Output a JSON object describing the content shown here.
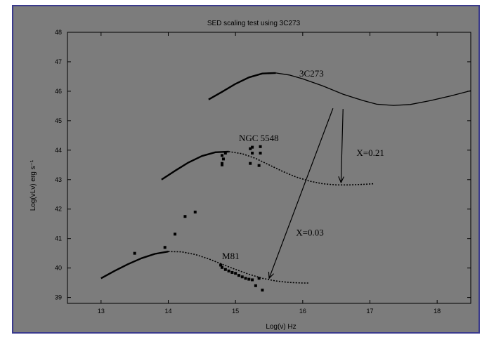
{
  "colors": {
    "page": "#ffffff",
    "border": "#3a3a8c",
    "panel": "#7c7c7c",
    "ink": "#000000"
  },
  "chart_data": {
    "type": "line",
    "title": "SED scaling test using 3C273",
    "xlabel": "Log(ν) Hz",
    "ylabel": "Log(νLν) erg s⁻¹",
    "xlim": [
      12.5,
      18.5
    ],
    "ylim": [
      38.8,
      48.0
    ],
    "x_ticks": [
      13,
      14,
      15,
      16,
      17,
      18
    ],
    "y_ticks": [
      39,
      40,
      41,
      42,
      43,
      44,
      45,
      46,
      47,
      48
    ],
    "grid": false,
    "series": [
      {
        "name": "3C273",
        "curve": [
          {
            "x": 14.6,
            "y": 45.72
          },
          {
            "x": 14.8,
            "y": 45.98
          },
          {
            "x": 15.0,
            "y": 46.25
          },
          {
            "x": 15.2,
            "y": 46.47
          },
          {
            "x": 15.4,
            "y": 46.6
          },
          {
            "x": 15.6,
            "y": 46.62
          },
          {
            "x": 15.8,
            "y": 46.55
          },
          {
            "x": 16.0,
            "y": 46.42
          },
          {
            "x": 16.3,
            "y": 46.18
          },
          {
            "x": 16.6,
            "y": 45.9
          },
          {
            "x": 16.9,
            "y": 45.68
          },
          {
            "x": 17.1,
            "y": 45.56
          },
          {
            "x": 17.35,
            "y": 45.52
          },
          {
            "x": 17.6,
            "y": 45.55
          },
          {
            "x": 17.9,
            "y": 45.68
          },
          {
            "x": 18.2,
            "y": 45.84
          },
          {
            "x": 18.5,
            "y": 46.02
          }
        ]
      },
      {
        "name": "NGC 5548",
        "curve": [
          {
            "x": 13.9,
            "y": 43.0
          },
          {
            "x": 14.1,
            "y": 43.3
          },
          {
            "x": 14.3,
            "y": 43.58
          },
          {
            "x": 14.5,
            "y": 43.8
          },
          {
            "x": 14.7,
            "y": 43.93
          },
          {
            "x": 14.9,
            "y": 43.95
          },
          {
            "x": 15.1,
            "y": 43.88
          },
          {
            "x": 15.3,
            "y": 43.72
          },
          {
            "x": 15.5,
            "y": 43.5
          },
          {
            "x": 15.7,
            "y": 43.28
          },
          {
            "x": 15.9,
            "y": 43.09
          },
          {
            "x": 16.1,
            "y": 42.95
          },
          {
            "x": 16.3,
            "y": 42.86
          },
          {
            "x": 16.5,
            "y": 42.82
          },
          {
            "x": 16.7,
            "y": 42.82
          },
          {
            "x": 16.9,
            "y": 42.84
          },
          {
            "x": 17.05,
            "y": 42.86
          }
        ],
        "points": [
          {
            "x": 14.8,
            "y": 43.5
          },
          {
            "x": 14.8,
            "y": 43.55
          },
          {
            "x": 14.82,
            "y": 43.7
          },
          {
            "x": 14.8,
            "y": 43.82
          },
          {
            "x": 14.85,
            "y": 43.9
          },
          {
            "x": 15.22,
            "y": 43.55
          },
          {
            "x": 15.25,
            "y": 43.9
          },
          {
            "x": 15.22,
            "y": 44.05
          },
          {
            "x": 15.25,
            "y": 44.1
          },
          {
            "x": 15.35,
            "y": 43.48
          },
          {
            "x": 15.37,
            "y": 43.9
          },
          {
            "x": 15.37,
            "y": 44.12
          }
        ]
      },
      {
        "name": "M81",
        "curve": [
          {
            "x": 13.0,
            "y": 39.65
          },
          {
            "x": 13.2,
            "y": 39.9
          },
          {
            "x": 13.4,
            "y": 40.13
          },
          {
            "x": 13.6,
            "y": 40.33
          },
          {
            "x": 13.8,
            "y": 40.48
          },
          {
            "x": 14.0,
            "y": 40.56
          },
          {
            "x": 14.2,
            "y": 40.55
          },
          {
            "x": 14.4,
            "y": 40.46
          },
          {
            "x": 14.6,
            "y": 40.31
          },
          {
            "x": 14.8,
            "y": 40.13
          },
          {
            "x": 15.0,
            "y": 39.95
          },
          {
            "x": 15.2,
            "y": 39.79
          },
          {
            "x": 15.4,
            "y": 39.65
          },
          {
            "x": 15.6,
            "y": 39.56
          },
          {
            "x": 15.8,
            "y": 39.51
          },
          {
            "x": 16.0,
            "y": 39.49
          },
          {
            "x": 16.1,
            "y": 39.49
          }
        ],
        "points": [
          {
            "x": 13.5,
            "y": 40.5
          },
          {
            "x": 13.95,
            "y": 40.7
          },
          {
            "x": 14.1,
            "y": 41.15
          },
          {
            "x": 14.25,
            "y": 41.75
          },
          {
            "x": 14.4,
            "y": 41.9
          },
          {
            "x": 14.78,
            "y": 40.1
          },
          {
            "x": 14.8,
            "y": 40.02
          },
          {
            "x": 14.85,
            "y": 39.95
          },
          {
            "x": 14.9,
            "y": 39.9
          },
          {
            "x": 14.95,
            "y": 39.85
          },
          {
            "x": 15.0,
            "y": 39.82
          },
          {
            "x": 15.05,
            "y": 39.75
          },
          {
            "x": 15.1,
            "y": 39.7
          },
          {
            "x": 15.15,
            "y": 39.65
          },
          {
            "x": 15.2,
            "y": 39.62
          },
          {
            "x": 15.25,
            "y": 39.6
          },
          {
            "x": 15.35,
            "y": 39.65
          },
          {
            "x": 15.3,
            "y": 39.4
          },
          {
            "x": 15.4,
            "y": 39.25
          }
        ]
      }
    ],
    "annotations": [
      {
        "text": "3C273",
        "x": 15.95,
        "y": 46.5
      },
      {
        "text": "NGC 5548",
        "x": 15.05,
        "y": 44.3
      },
      {
        "text": "M81",
        "x": 14.8,
        "y": 40.3
      },
      {
        "text": "X=0.21",
        "x": 16.8,
        "y": 43.8
      },
      {
        "text": "X=0.03",
        "x": 15.9,
        "y": 41.1
      }
    ],
    "arrows": [
      {
        "from": {
          "x": 16.6,
          "y": 45.4
        },
        "to": {
          "x": 16.57,
          "y": 42.9
        }
      },
      {
        "from": {
          "x": 16.45,
          "y": 45.42
        },
        "to": {
          "x": 15.5,
          "y": 39.65
        }
      }
    ]
  }
}
